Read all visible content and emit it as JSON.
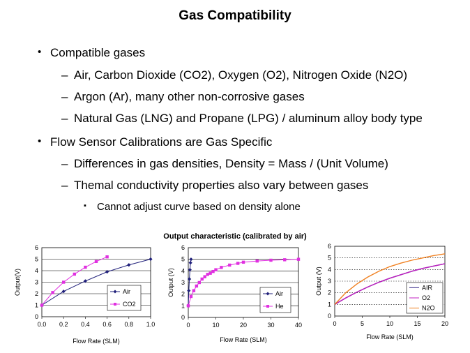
{
  "slide": {
    "title": "Gas Compatibility",
    "bullets": [
      {
        "level": 1,
        "marker": "•",
        "text": "Compatible gases"
      },
      {
        "level": 2,
        "marker": "–",
        "text": "Air, Carbon Dioxide (CO2), Oxygen (O2), Nitrogen Oxide (N2O)"
      },
      {
        "level": 2,
        "marker": "–",
        "text": "Argon (Ar), many other non-corrosive gases"
      },
      {
        "level": 2,
        "marker": "–",
        "text": "Natural Gas (LNG) and Propane (LPG) / aluminum alloy body type"
      },
      {
        "level": 1,
        "marker": "•",
        "text": "Flow Sensor Calibrations are Gas Specific"
      },
      {
        "level": 2,
        "marker": "–",
        "text": "Differences in gas densities, Density = Mass / (Unit Volume)"
      },
      {
        "level": 2,
        "marker": "–",
        "text": "Themal conductivity properties also vary between gases"
      },
      {
        "level": 3,
        "marker": "▪",
        "text": "Cannot adjust curve based on density alone"
      }
    ],
    "charts_title": "Output characteristic (calibrated by air)"
  },
  "chart_data": [
    {
      "type": "line",
      "xlabel": "Flow Rate (SLM)",
      "ylabel": "Output(V)",
      "xlim": [
        0,
        1.0
      ],
      "ylim": [
        0,
        6
      ],
      "xticks": [
        "0.0",
        "0.2",
        "0.4",
        "0.6",
        "0.8",
        "1.0"
      ],
      "yticks": [
        "0",
        "1",
        "2",
        "3",
        "4",
        "5",
        "6"
      ],
      "grid": "horizontal",
      "legend": "bottom-right",
      "series": [
        {
          "name": "Air",
          "color": "#1f1f7a",
          "marker": "diamond",
          "x": [
            0,
            0.2,
            0.4,
            0.6,
            0.8,
            1.0
          ],
          "y": [
            1.0,
            2.2,
            3.1,
            3.9,
            4.5,
            5.0
          ]
        },
        {
          "name": "CO2",
          "color": "#e030e0",
          "marker": "square",
          "x": [
            0,
            0.1,
            0.2,
            0.3,
            0.4,
            0.5,
            0.6
          ],
          "y": [
            1.0,
            2.1,
            3.0,
            3.7,
            4.3,
            4.8,
            5.2
          ]
        }
      ]
    },
    {
      "type": "line",
      "xlabel": "Flow Rate (SLM)",
      "ylabel": "Output (V)",
      "xlim": [
        0,
        40
      ],
      "ylim": [
        0,
        6
      ],
      "xticks": [
        "0",
        "10",
        "20",
        "30",
        "40"
      ],
      "yticks": [
        "0",
        "1",
        "2",
        "3",
        "4",
        "5",
        "6"
      ],
      "grid": "horizontal",
      "legend": "bottom-right",
      "series": [
        {
          "name": "Air",
          "color": "#1f1f7a",
          "marker": "diamond",
          "x": [
            0,
            0.2,
            0.4,
            0.6,
            0.8,
            1.0
          ],
          "y": [
            1.0,
            2.3,
            3.3,
            4.1,
            4.7,
            5.0
          ]
        },
        {
          "name": "He",
          "color": "#e030e0",
          "marker": "square",
          "x": [
            0,
            1,
            2,
            3,
            4,
            5,
            6,
            7,
            8,
            9,
            10,
            12,
            15,
            18,
            20,
            25,
            30,
            35,
            40
          ],
          "y": [
            1.0,
            1.8,
            2.3,
            2.7,
            3.0,
            3.3,
            3.5,
            3.7,
            3.8,
            3.95,
            4.1,
            4.3,
            4.5,
            4.65,
            4.75,
            4.85,
            4.92,
            4.96,
            5.0
          ]
        }
      ]
    },
    {
      "type": "line",
      "xlabel": "Flow Rate (SLM)",
      "ylabel": "Output (V)",
      "xlim": [
        0,
        20
      ],
      "ylim": [
        0,
        6
      ],
      "xticks": [
        "0",
        "5",
        "10",
        "15",
        "20"
      ],
      "yticks": [
        "0",
        "1",
        "2",
        "3",
        "4",
        "5",
        "6"
      ],
      "grid": "horizontal dotted",
      "legend": "bottom-right",
      "series": [
        {
          "name": "AIR",
          "color": "#3a2a8a",
          "x": [
            0,
            2,
            4,
            6,
            8,
            10,
            12,
            14,
            16,
            18,
            20
          ],
          "y": [
            1.0,
            1.55,
            2.05,
            2.5,
            2.9,
            3.25,
            3.55,
            3.85,
            4.1,
            4.3,
            4.5
          ]
        },
        {
          "name": "O2",
          "color": "#c020c0",
          "x": [
            0,
            2,
            4,
            6,
            8,
            10,
            12,
            14,
            16,
            18,
            20
          ],
          "y": [
            1.0,
            1.55,
            2.05,
            2.5,
            2.9,
            3.25,
            3.55,
            3.85,
            4.1,
            4.3,
            4.5
          ]
        },
        {
          "name": "N2O",
          "color": "#f08020",
          "x": [
            0,
            2,
            4,
            6,
            8,
            10,
            12,
            14,
            16,
            18,
            20
          ],
          "y": [
            1.0,
            2.0,
            2.75,
            3.35,
            3.85,
            4.25,
            4.55,
            4.8,
            5.0,
            5.2,
            5.35
          ]
        }
      ]
    }
  ]
}
